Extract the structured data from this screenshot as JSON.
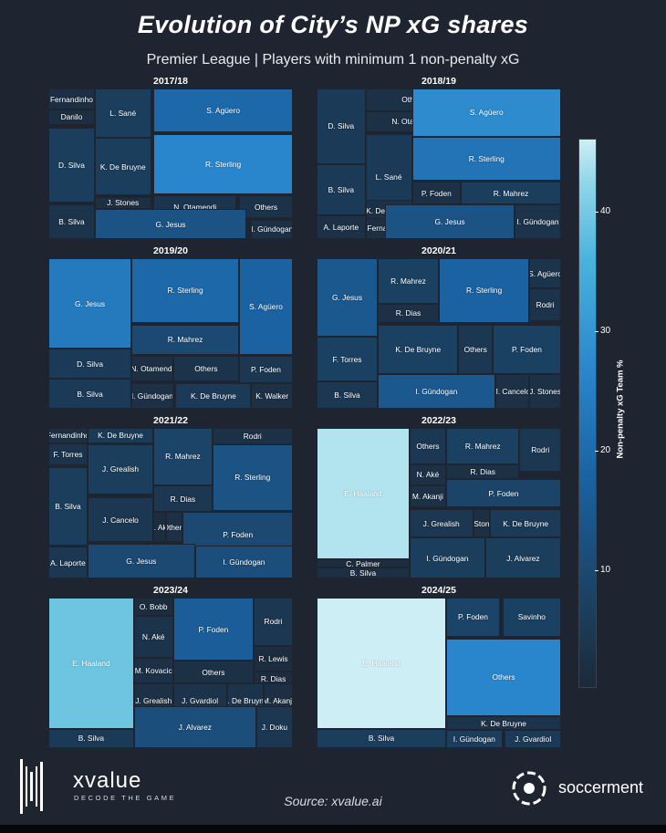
{
  "header": {
    "title": "Evolution of City’s NP xG shares",
    "subtitle": "Premier League | Players with minimum 1 non-penalty xG"
  },
  "colorbar": {
    "label": "Non-penalty xG Team %",
    "ticks": [
      10,
      20,
      30,
      40
    ],
    "min": 0,
    "max": 45
  },
  "footer": {
    "brand": "xvalue",
    "tagline": "DECODE THE GAME",
    "source": "Source: xvalue.ai",
    "partner": "soccerment"
  },
  "chart_data": [
    {
      "type": "treemap",
      "title": "2017/18",
      "series": [
        {
          "name": "Fernandinho",
          "value": 1.5
        },
        {
          "name": "Danilo",
          "value": 1.2
        },
        {
          "name": "L. Sané",
          "value": 6
        },
        {
          "name": "S. Agüero",
          "value": 15
        },
        {
          "name": "D. Silva",
          "value": 6
        },
        {
          "name": "K. De Bruyne",
          "value": 6
        },
        {
          "name": "R. Sterling",
          "value": 20
        },
        {
          "name": "J. Stones",
          "value": 1.5
        },
        {
          "name": "N. Otamendi",
          "value": 3.5
        },
        {
          "name": "Others",
          "value": 2.5
        },
        {
          "name": "B. Silva",
          "value": 3
        },
        {
          "name": "G. Jesus",
          "value": 11
        },
        {
          "name": "I. Gündogan",
          "value": 2
        }
      ]
    },
    {
      "type": "treemap",
      "title": "2018/19",
      "series": [
        {
          "name": "D. Silva",
          "value": 5
        },
        {
          "name": "Others",
          "value": 2
        },
        {
          "name": "N. Otamendi",
          "value": 2
        },
        {
          "name": "S. Agüero",
          "value": 21
        },
        {
          "name": "L. Sané",
          "value": 5
        },
        {
          "name": "R. Sterling",
          "value": 17
        },
        {
          "name": "B. Silva",
          "value": 5
        },
        {
          "name": "K. De Bruyne",
          "value": 2
        },
        {
          "name": "P. Foden",
          "value": 2
        },
        {
          "name": "R. Mahrez",
          "value": 6
        },
        {
          "name": "A. Laporte",
          "value": 2
        },
        {
          "name": "Fernandinho",
          "value": 1.5
        },
        {
          "name": "G. Jesus",
          "value": 11
        },
        {
          "name": "I. Gündogan",
          "value": 3
        }
      ]
    },
    {
      "type": "treemap",
      "title": "2019/20",
      "series": [
        {
          "name": "G. Jesus",
          "value": 18
        },
        {
          "name": "R. Sterling",
          "value": 15
        },
        {
          "name": "S. Agüero",
          "value": 14
        },
        {
          "name": "R. Mahrez",
          "value": 9
        },
        {
          "name": "D. Silva",
          "value": 5
        },
        {
          "name": "N. Otamendi",
          "value": 1.5
        },
        {
          "name": "Others",
          "value": 3
        },
        {
          "name": "P. Foden",
          "value": 4
        },
        {
          "name": "B. Silva",
          "value": 5
        },
        {
          "name": "I. Gündogan",
          "value": 2
        },
        {
          "name": "K. De Bruyne",
          "value": 5
        },
        {
          "name": "K. Walker",
          "value": 2
        }
      ]
    },
    {
      "type": "treemap",
      "title": "2020/21",
      "series": [
        {
          "name": "G. Jesus",
          "value": 12
        },
        {
          "name": "R. Mahrez",
          "value": 7
        },
        {
          "name": "R. Sterling",
          "value": 14
        },
        {
          "name": "S. Agüero",
          "value": 3
        },
        {
          "name": "Rodri",
          "value": 3
        },
        {
          "name": "R. Dias",
          "value": 2
        },
        {
          "name": "F. Torres",
          "value": 7
        },
        {
          "name": "K. De Bruyne",
          "value": 7
        },
        {
          "name": "Others",
          "value": 4
        },
        {
          "name": "P. Foden",
          "value": 7
        },
        {
          "name": "B. Silva",
          "value": 4
        },
        {
          "name": "I. Gündogan",
          "value": 12
        },
        {
          "name": "J. Cancelo",
          "value": 2
        },
        {
          "name": "J. Stones",
          "value": 2
        }
      ]
    },
    {
      "type": "treemap",
      "title": "2021/22",
      "series": [
        {
          "name": "Fernandinho",
          "value": 1.5
        },
        {
          "name": "F. Torres",
          "value": 3
        },
        {
          "name": "K. De Bruyne",
          "value": 5
        },
        {
          "name": "R. Mahrez",
          "value": 8
        },
        {
          "name": "Rodri",
          "value": 2
        },
        {
          "name": "R. Sterling",
          "value": 11
        },
        {
          "name": "B. Silva",
          "value": 6
        },
        {
          "name": "J. Grealish",
          "value": 6
        },
        {
          "name": "R. Dias",
          "value": 4
        },
        {
          "name": "J. Cancelo",
          "value": 4
        },
        {
          "name": "N. Aké",
          "value": 1
        },
        {
          "name": "Others",
          "value": 2
        },
        {
          "name": "P. Foden",
          "value": 9
        },
        {
          "name": "A. Laporte",
          "value": 4
        },
        {
          "name": "G. Jesus",
          "value": 9
        },
        {
          "name": "I. Gündogan",
          "value": 10
        }
      ]
    },
    {
      "type": "treemap",
      "title": "2022/23",
      "series": [
        {
          "name": "E. Haaland",
          "value": 42
        },
        {
          "name": "Others",
          "value": 4
        },
        {
          "name": "R. Mahrez",
          "value": 7
        },
        {
          "name": "Rodri",
          "value": 4
        },
        {
          "name": "R. Dias",
          "value": 2
        },
        {
          "name": "N. Aké",
          "value": 2
        },
        {
          "name": "M. Akanji",
          "value": 2
        },
        {
          "name": "P. Foden",
          "value": 8
        },
        {
          "name": "J. Grealish",
          "value": 4
        },
        {
          "name": "J. Stones",
          "value": 1.5
        },
        {
          "name": "K. De Bruyne",
          "value": 5
        },
        {
          "name": "C. Palmer",
          "value": 1
        },
        {
          "name": "B. Silva",
          "value": 1.5
        },
        {
          "name": "I. Gündogan",
          "value": 6
        },
        {
          "name": "J. Alvarez",
          "value": 6
        }
      ]
    },
    {
      "type": "treemap",
      "title": "2023/24",
      "series": [
        {
          "name": "E. Haaland",
          "value": 34
        },
        {
          "name": "O. Bobb",
          "value": 1
        },
        {
          "name": "N. Aké",
          "value": 3
        },
        {
          "name": "P. Foden",
          "value": 13
        },
        {
          "name": "Rodri",
          "value": 4
        },
        {
          "name": "M. Kovacic",
          "value": 2
        },
        {
          "name": "R. Lewis",
          "value": 1
        },
        {
          "name": "R. Dias",
          "value": 1
        },
        {
          "name": "Others",
          "value": 2
        },
        {
          "name": "J. Grealish",
          "value": 2
        },
        {
          "name": "J. Gvardiol",
          "value": 3
        },
        {
          "name": "K. De Bruyne",
          "value": 3
        },
        {
          "name": "M. Akanji",
          "value": 1.5
        },
        {
          "name": "B. Silva",
          "value": 5
        },
        {
          "name": "J. Alvarez",
          "value": 10
        },
        {
          "name": "J. Doku",
          "value": 4
        }
      ]
    },
    {
      "type": "treemap",
      "title": "2024/25",
      "series": [
        {
          "name": "E. Haaland",
          "value": 45
        },
        {
          "name": "P. Foden",
          "value": 8
        },
        {
          "name": "Savinho",
          "value": 7
        },
        {
          "name": "Others",
          "value": 20
        },
        {
          "name": "K. De Bruyne",
          "value": 3
        },
        {
          "name": "B. Silva",
          "value": 6
        },
        {
          "name": "I. Gündogan",
          "value": 6
        },
        {
          "name": "J. Gvardiol",
          "value": 5
        }
      ]
    }
  ]
}
